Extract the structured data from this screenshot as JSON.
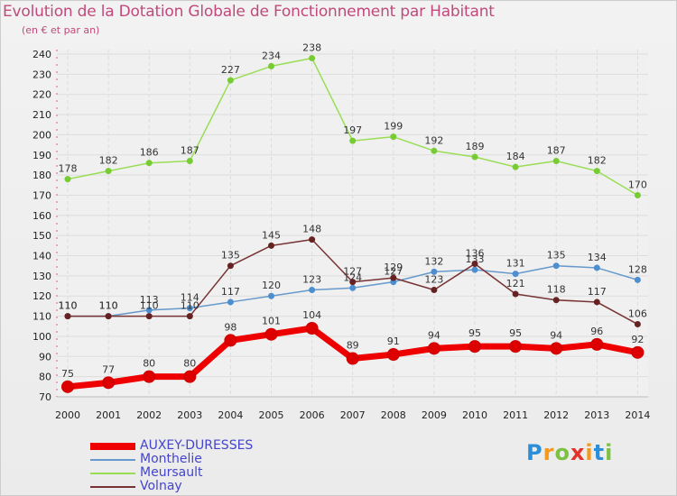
{
  "title": "Evolution de la Dotation Globale de Fonctionnement par Habitant",
  "subtitle": "(en € et par an)",
  "chart_data": {
    "type": "line",
    "title": "Evolution de la Dotation Globale de Fonctionnement par Habitant",
    "subtitle": "(en € et par an)",
    "xlabel": "",
    "ylabel": "",
    "ylim": [
      70,
      240
    ],
    "yticks": [
      70,
      80,
      90,
      100,
      110,
      120,
      130,
      140,
      150,
      160,
      170,
      180,
      190,
      200,
      210,
      220,
      230,
      240
    ],
    "categories": [
      "2000",
      "2001",
      "2002",
      "2003",
      "2004",
      "2005",
      "2006",
      "2007",
      "2008",
      "2009",
      "2010",
      "2011",
      "2012",
      "2013",
      "2014"
    ],
    "grid": true,
    "legend_position": "bottom-left",
    "series": [
      {
        "name": "Meursault",
        "color": "#99dd55",
        "marker": "#77cc33",
        "values": [
          178,
          182,
          186,
          187,
          227,
          234,
          238,
          197,
          199,
          192,
          189,
          184,
          187,
          182,
          170
        ]
      },
      {
        "name": "Monthelie",
        "color": "#6699cc",
        "marker": "#4d8ed1",
        "values": [
          110,
          110,
          113,
          114,
          117,
          120,
          123,
          124,
          127,
          132,
          133,
          131,
          135,
          134,
          128
        ]
      },
      {
        "name": "Volnay",
        "color": "#773333",
        "marker": "#662222",
        "values": [
          110,
          110,
          110,
          110,
          135,
          145,
          148,
          127,
          129,
          123,
          136,
          121,
          118,
          117,
          106
        ]
      },
      {
        "name": "AUXEY-DURESSES",
        "color": "#ee0000",
        "marker": "#dd0000",
        "values": [
          75,
          77,
          80,
          80,
          98,
          101,
          104,
          89,
          91,
          94,
          95,
          95,
          94,
          96,
          92
        ]
      }
    ],
    "legend_order": [
      "AUXEY-DURESSES",
      "Monthelie",
      "Meursault",
      "Volnay"
    ]
  },
  "logo": {
    "letters": [
      "P",
      "r",
      "o",
      "x",
      "i",
      "t",
      "i"
    ],
    "colors": [
      "#2a8fd8",
      "#f39a1e",
      "#7cc242",
      "#e4322b",
      "#f39a1e",
      "#2a8fd8",
      "#7cc242"
    ]
  }
}
